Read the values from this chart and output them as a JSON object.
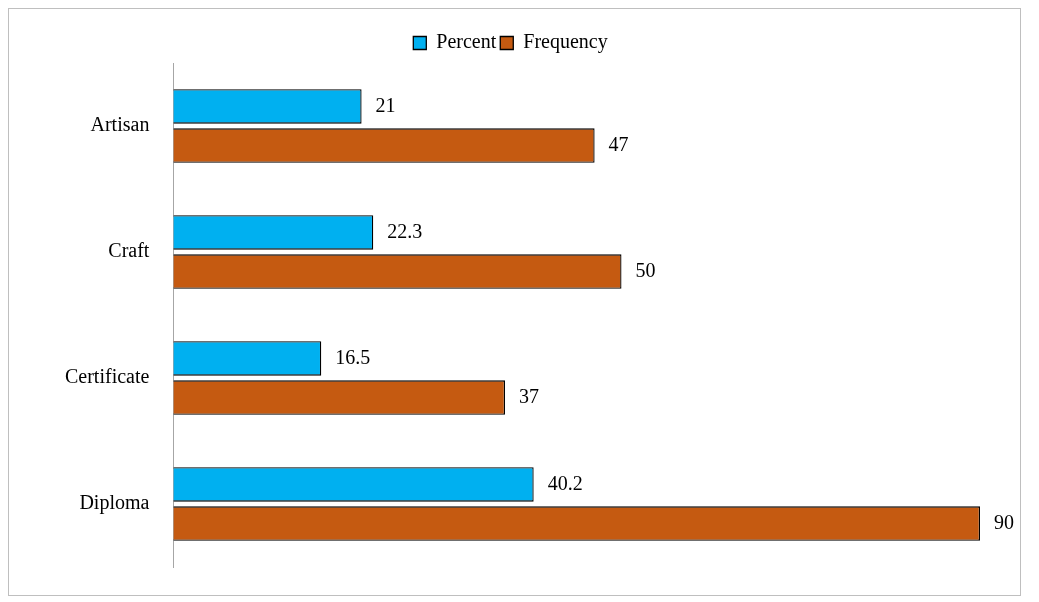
{
  "chart_data": {
    "type": "bar",
    "orientation": "horizontal",
    "categories": [
      "Artisan",
      "Craft",
      "Certificate",
      "Diploma"
    ],
    "series": [
      {
        "name": "Percent",
        "color": "#00b0f0",
        "values": [
          21,
          22.3,
          16.5,
          40.2
        ]
      },
      {
        "name": "Frequency",
        "color": "#c55a11",
        "values": [
          47,
          50,
          37,
          90
        ]
      }
    ],
    "data_labels": true,
    "legend": "top",
    "grid": false,
    "tick_labels": "y"
  }
}
